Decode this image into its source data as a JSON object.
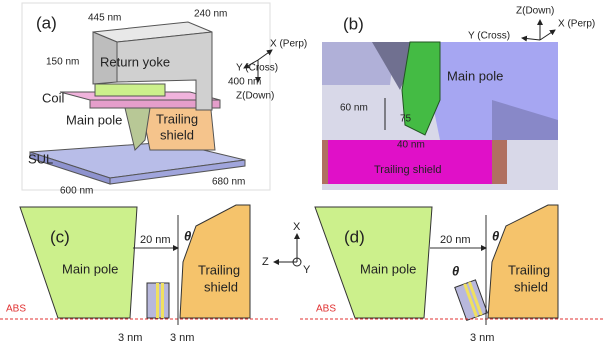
{
  "panel_a": {
    "label": "(a)",
    "dims": [
      "445 nm",
      "240 nm",
      "150 nm",
      "400 nm",
      "600 nm",
      "680 nm"
    ],
    "parts": {
      "return_yoke": "Return yoke",
      "coil": "Coil",
      "main_pole": "Main pole",
      "trailing_shield": [
        "Trailing",
        "shield"
      ],
      "sul": "SUL"
    },
    "axes": {
      "x": "X (Perp)",
      "y": "Y (Cross)",
      "z": "Z(Down)"
    }
  },
  "panel_b": {
    "label": "(b)",
    "axes": {
      "z": "Z(Down)",
      "y": "Y (Cross)",
      "x": "X (Perp)"
    },
    "main_pole": "Main pole",
    "height": "60 nm",
    "angle": "75",
    "width": "40 nm",
    "trailing_shield": "Trailing shield"
  },
  "panel_c": {
    "label": "(c)",
    "main_pole": "Main pole",
    "trailing_shield": [
      "Trailing",
      "shield"
    ],
    "gap": "20 nm",
    "theta": "θ",
    "abs": "ABS",
    "spacings": [
      "3 nm",
      "3 nm"
    ]
  },
  "center_axes": {
    "x": "X",
    "z": "Z",
    "y": "Y"
  },
  "panel_d": {
    "label": "(d)",
    "main_pole": "Main pole",
    "trailing_shield": [
      "Trailing",
      "shield"
    ],
    "gap": "20 nm",
    "theta": "θ",
    "tilt": "θ",
    "abs": "ABS",
    "spacing": "3 nm"
  }
}
